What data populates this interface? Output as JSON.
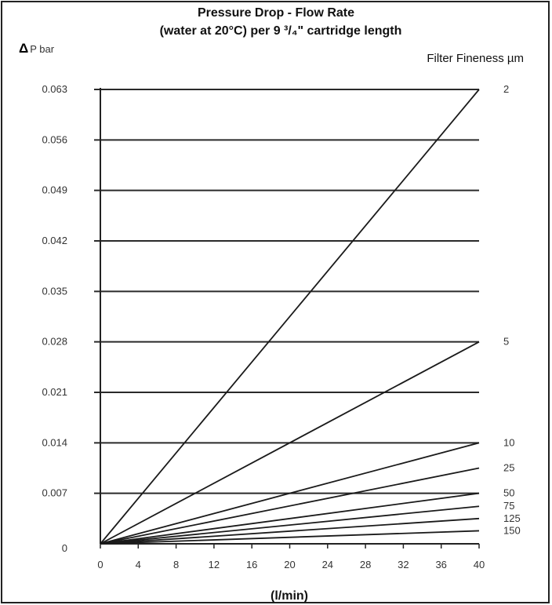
{
  "chart_data": {
    "type": "line",
    "title_line1": "Pressure Drop - Flow Rate",
    "title_line2": "(water at 20°C) per 9 ³/₄\" cartridge length",
    "ylabel_delta": "Δ",
    "ylabel": "P bar",
    "series_header": "Filter Fineness  µm",
    "xlabel": "(l/min)",
    "xlim": [
      0,
      40
    ],
    "ylim": [
      0,
      0.063
    ],
    "x_ticks": [
      "0",
      "4",
      "8",
      "12",
      "16",
      "20",
      "24",
      "28",
      "32",
      "36",
      "40"
    ],
    "y_ticks": [
      "0",
      "0.007",
      "0.014",
      "0.021",
      "0.028",
      "0.035",
      "0.042",
      "0.049",
      "0.056",
      "0.063"
    ],
    "grid": "horizontal",
    "series": [
      {
        "name": "2",
        "x": [
          0,
          40
        ],
        "y": [
          0,
          0.063
        ]
      },
      {
        "name": "5",
        "x": [
          0,
          40
        ],
        "y": [
          0,
          0.028
        ]
      },
      {
        "name": "10",
        "x": [
          0,
          40
        ],
        "y": [
          0,
          0.014
        ]
      },
      {
        "name": "25",
        "x": [
          0,
          40
        ],
        "y": [
          0,
          0.0105
        ]
      },
      {
        "name": "50",
        "x": [
          0,
          40
        ],
        "y": [
          0,
          0.007
        ]
      },
      {
        "name": "75",
        "x": [
          0,
          40
        ],
        "y": [
          0,
          0.0052
        ]
      },
      {
        "name": "125",
        "x": [
          0,
          40
        ],
        "y": [
          0,
          0.0035
        ]
      },
      {
        "name": "150",
        "x": [
          0,
          40
        ],
        "y": [
          0,
          0.0018
        ]
      }
    ]
  }
}
